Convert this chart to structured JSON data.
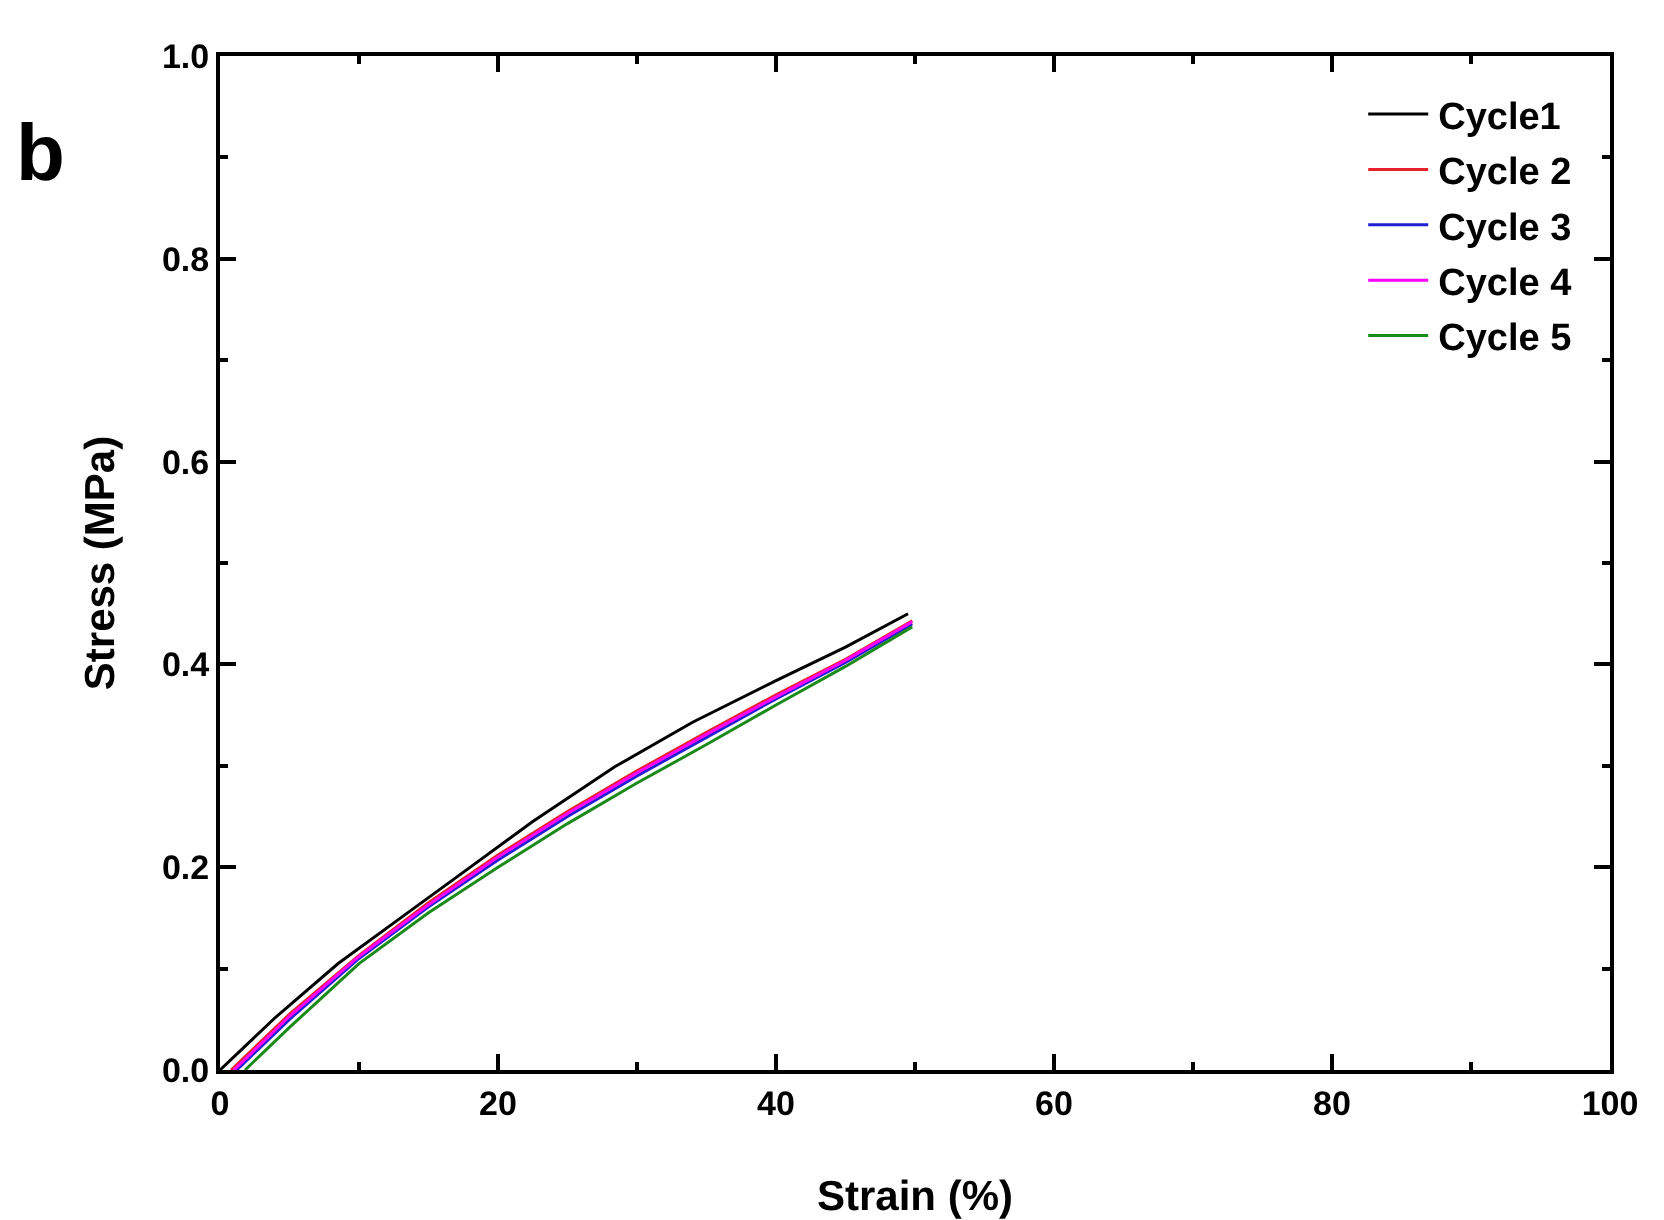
{
  "chart_data": {
    "type": "line",
    "xlabel": "Strain (%)",
    "ylabel": "Stress (MPa)",
    "annotations": [
      "b"
    ],
    "xlim": [
      0,
      100
    ],
    "xticks": [
      0,
      20,
      40,
      60,
      80,
      100
    ],
    "ylim": [
      0,
      1
    ],
    "yticks": [
      {
        "value": 0,
        "label": "0.0"
      },
      {
        "value": 0.2,
        "label": "0.2"
      },
      {
        "value": 0.4,
        "label": "0.4"
      },
      {
        "value": 0.6,
        "label": "0.6"
      },
      {
        "value": 0.8,
        "label": "0.8"
      },
      {
        "value": 1,
        "label": "1.0"
      }
    ],
    "grid": false,
    "legend": "top right",
    "marker": "none",
    "line_style": "solid",
    "series": [
      {
        "name": "Cycle1",
        "color": "#000000",
        "x": [
          0,
          4,
          8.5,
          13,
          17,
          22.5,
          28.4,
          34,
          40,
          45,
          49.5
        ],
        "values": [
          0,
          0.052,
          0.105,
          0.15,
          0.19,
          0.245,
          0.299,
          0.343,
          0.384,
          0.417,
          0.45
        ]
      },
      {
        "name": "Cycle 2",
        "color": "#e8202a",
        "x": [
          0.8,
          5,
          10,
          15,
          20,
          25,
          30,
          35,
          40,
          45,
          49.8
        ],
        "values": [
          0,
          0.055,
          0.113,
          0.165,
          0.212,
          0.255,
          0.295,
          0.333,
          0.37,
          0.405,
          0.443
        ]
      },
      {
        "name": "Cycle 3",
        "color": "#2020d0",
        "x": [
          1.2,
          5,
          10,
          15,
          20,
          25,
          30,
          35,
          40,
          45,
          49.8
        ],
        "values": [
          0,
          0.05,
          0.11,
          0.161,
          0.207,
          0.25,
          0.29,
          0.328,
          0.366,
          0.402,
          0.44
        ]
      },
      {
        "name": "Cycle 4",
        "color": "#ff00ff",
        "x": [
          1,
          5,
          10,
          15,
          20,
          25,
          30,
          35,
          40,
          45,
          49.8
        ],
        "values": [
          0,
          0.053,
          0.112,
          0.163,
          0.21,
          0.253,
          0.293,
          0.331,
          0.368,
          0.404,
          0.442
        ]
      },
      {
        "name": "Cycle 5",
        "color": "#1a8a1a",
        "x": [
          1.8,
          5,
          10,
          15,
          20,
          25,
          30,
          35,
          40,
          45,
          49.8
        ],
        "values": [
          0,
          0.042,
          0.105,
          0.155,
          0.2,
          0.243,
          0.283,
          0.321,
          0.36,
          0.398,
          0.437
        ]
      }
    ]
  }
}
